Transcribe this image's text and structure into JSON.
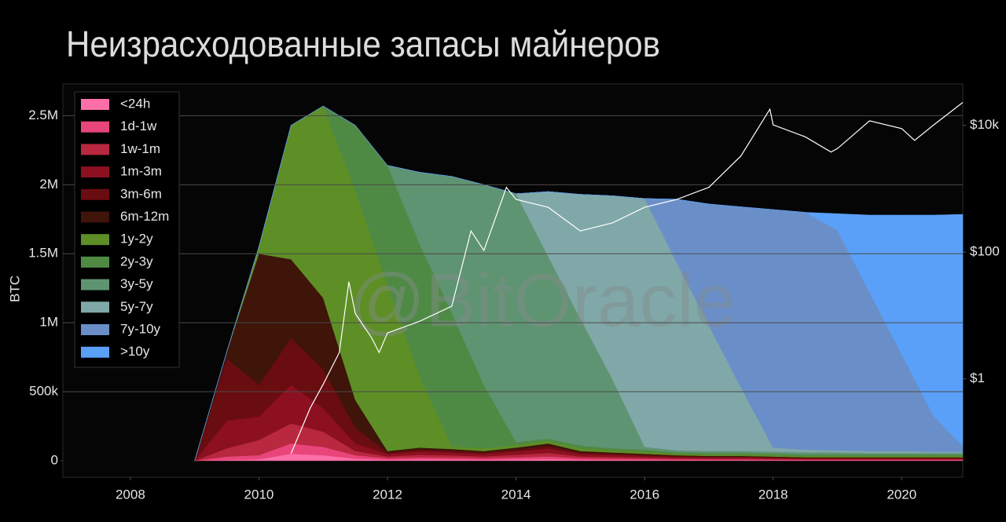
{
  "chart_data": {
    "type": "stacked-area",
    "title": "Неизрасходованные запасы майнеров",
    "watermark": "@BitOracle",
    "ylabel": "BTC",
    "xlim": [
      2006.95,
      2020.95
    ],
    "xticks": [
      2008,
      2010,
      2012,
      2014,
      2016,
      2018,
      2020
    ],
    "ylim": [
      -120000,
      2730000
    ],
    "yticks": [
      0,
      {
        "value": 500000,
        "label": "500k"
      },
      {
        "value": 1000000,
        "label": "1M"
      },
      {
        "value": 1500000,
        "label": "1.5M"
      },
      {
        "value": 2000000,
        "label": "2M"
      },
      {
        "value": 2500000,
        "label": "2.5M"
      }
    ],
    "y2lim": [
      0.028,
      45000
    ],
    "y2scale": "log",
    "y2ticks": [
      {
        "value": 1,
        "label": "$1"
      },
      {
        "value": 100,
        "label": "$100"
      },
      {
        "value": 10000,
        "label": "$10k"
      }
    ],
    "grid": true,
    "legend": "upper-left",
    "x": [
      2009,
      2009.5,
      2010,
      2010.5,
      2011,
      2011.5,
      2012,
      2012.5,
      2013,
      2013.5,
      2014,
      2014.5,
      2015,
      2015.5,
      2016,
      2016.5,
      2017,
      2017.5,
      2018,
      2018.5,
      2019,
      2019.5,
      2020,
      2020.5,
      2020.95
    ],
    "series": [
      {
        "name": "<24h",
        "color": "#ff6fa8",
        "values": [
          0,
          5000,
          10000,
          50000,
          40000,
          15000,
          7000,
          9500,
          8500,
          7000,
          9500,
          12500,
          7000,
          6000,
          5000,
          4000,
          3500,
          3500,
          3000,
          2500,
          2500,
          2500,
          2500,
          2500,
          2500
        ]
      },
      {
        "name": "1d-1w",
        "color": "#e8457a",
        "values": [
          0,
          25000,
          30000,
          75000,
          60000,
          25000,
          10500,
          14000,
          13000,
          10500,
          14000,
          19000,
          10500,
          9000,
          7500,
          6000,
          5000,
          5000,
          4500,
          4000,
          4000,
          4000,
          4000,
          4000,
          4000
        ]
      },
      {
        "name": "1w-1m",
        "color": "#b8283f",
        "values": [
          0,
          60000,
          110000,
          145000,
          110000,
          30000,
          14000,
          19000,
          17000,
          14000,
          19000,
          25000,
          14000,
          12000,
          10000,
          8000,
          7000,
          7000,
          6000,
          5000,
          5000,
          5000,
          5000,
          5000,
          5000
        ]
      },
      {
        "name": "1m-3m",
        "color": "#8c1020",
        "values": [
          0,
          200000,
          170000,
          280000,
          170000,
          55000,
          17500,
          24000,
          21000,
          17500,
          24000,
          31000,
          17500,
          15000,
          12500,
          10000,
          9000,
          9000,
          7500,
          6000,
          6000,
          6000,
          6000,
          6000,
          6000
        ]
      },
      {
        "name": "3m-6m",
        "color": "#6a0d10",
        "values": [
          0,
          450000,
          230000,
          340000,
          285000,
          115000,
          10500,
          14000,
          13000,
          10500,
          14000,
          19000,
          10500,
          9000,
          7500,
          6000,
          5500,
          5500,
          4500,
          4000,
          4000,
          4000,
          4000,
          4000,
          4000
        ]
      },
      {
        "name": "6m-12m",
        "color": "#3f1409",
        "values": [
          0,
          50000,
          950000,
          570000,
          515000,
          200000,
          10500,
          14500,
          12500,
          10500,
          14500,
          18500,
          10500,
          9000,
          7500,
          6000,
          5000,
          5000,
          4500,
          3500,
          3500,
          3500,
          3500,
          3500,
          3500
        ]
      },
      {
        "name": "1y-2y",
        "color": "#5e8f26",
        "values": [
          0,
          0,
          50000,
          970000,
          1390000,
          1520000,
          1210000,
          515000,
          20000,
          20000,
          20000,
          20000,
          20000,
          15000,
          15000,
          10000,
          10000,
          10000,
          10000,
          10000,
          10000,
          10000,
          10000,
          10000,
          10000
        ]
      },
      {
        "name": "2y-3y",
        "color": "#4f8a45",
        "values": [
          0,
          0,
          0,
          0,
          0,
          470000,
          860000,
          960000,
          965000,
          460000,
          20000,
          15000,
          20000,
          15000,
          15000,
          10000,
          10000,
          10000,
          10000,
          10000,
          10000,
          10000,
          10000,
          10000,
          10000
        ]
      },
      {
        "name": "3y-5y",
        "color": "#5f9472",
        "values": [
          0,
          0,
          0,
          0,
          0,
          0,
          0,
          520000,
          990000,
          1450000,
          1800000,
          1320000,
          920000,
          500000,
          20000,
          15000,
          15000,
          15000,
          15000,
          15000,
          15000,
          10000,
          10000,
          10000,
          10000
        ]
      },
      {
        "name": "5y-7y",
        "color": "#80a8a8",
        "values": [
          0,
          0,
          0,
          0,
          0,
          0,
          0,
          0,
          0,
          0,
          0,
          470000,
          900000,
          1330000,
          1800000,
          1360000,
          910000,
          460000,
          30000,
          20000,
          15000,
          15000,
          15000,
          10000,
          10000
        ]
      },
      {
        "name": "7y-10y",
        "color": "#6a8fc8",
        "values": [
          0,
          0,
          0,
          0,
          0,
          0,
          0,
          0,
          0,
          0,
          0,
          0,
          0,
          0,
          0,
          460000,
          880000,
          1310000,
          1725000,
          1720000,
          1595000,
          1150000,
          700000,
          255000,
          40000
        ]
      },
      {
        "name": ">10y",
        "color": "#5aa0f8",
        "values": [
          0,
          0,
          0,
          0,
          0,
          0,
          0,
          0,
          0,
          0,
          0,
          0,
          0,
          0,
          0,
          0,
          0,
          0,
          0,
          0,
          120000,
          560000,
          1010000,
          1460000,
          1680000
        ]
      }
    ],
    "price": {
      "axis": "y2",
      "color": "#ffffff",
      "x": [
        2010.5,
        2010.8,
        2011.0,
        2011.25,
        2011.4,
        2011.5,
        2011.75,
        2011.87,
        2012.0,
        2012.5,
        2013.0,
        2013.3,
        2013.5,
        2013.85,
        2014.0,
        2014.5,
        2015.0,
        2015.5,
        2016.0,
        2016.5,
        2017.0,
        2017.5,
        2017.95,
        2018.0,
        2018.5,
        2018.9,
        2019.0,
        2019.5,
        2020.0,
        2020.2,
        2020.5,
        2020.95
      ],
      "values": [
        0.066,
        0.35,
        0.82,
        2.6,
        34,
        10.7,
        4.5,
        2.6,
        5.3,
        8.1,
        14,
        216,
        106,
        1050,
        680,
        510,
        216,
        290,
        510,
        680,
        1050,
        3300,
        18000,
        10200,
        6600,
        3800,
        4300,
        11800,
        8900,
        5800,
        10200,
        23000
      ]
    }
  }
}
